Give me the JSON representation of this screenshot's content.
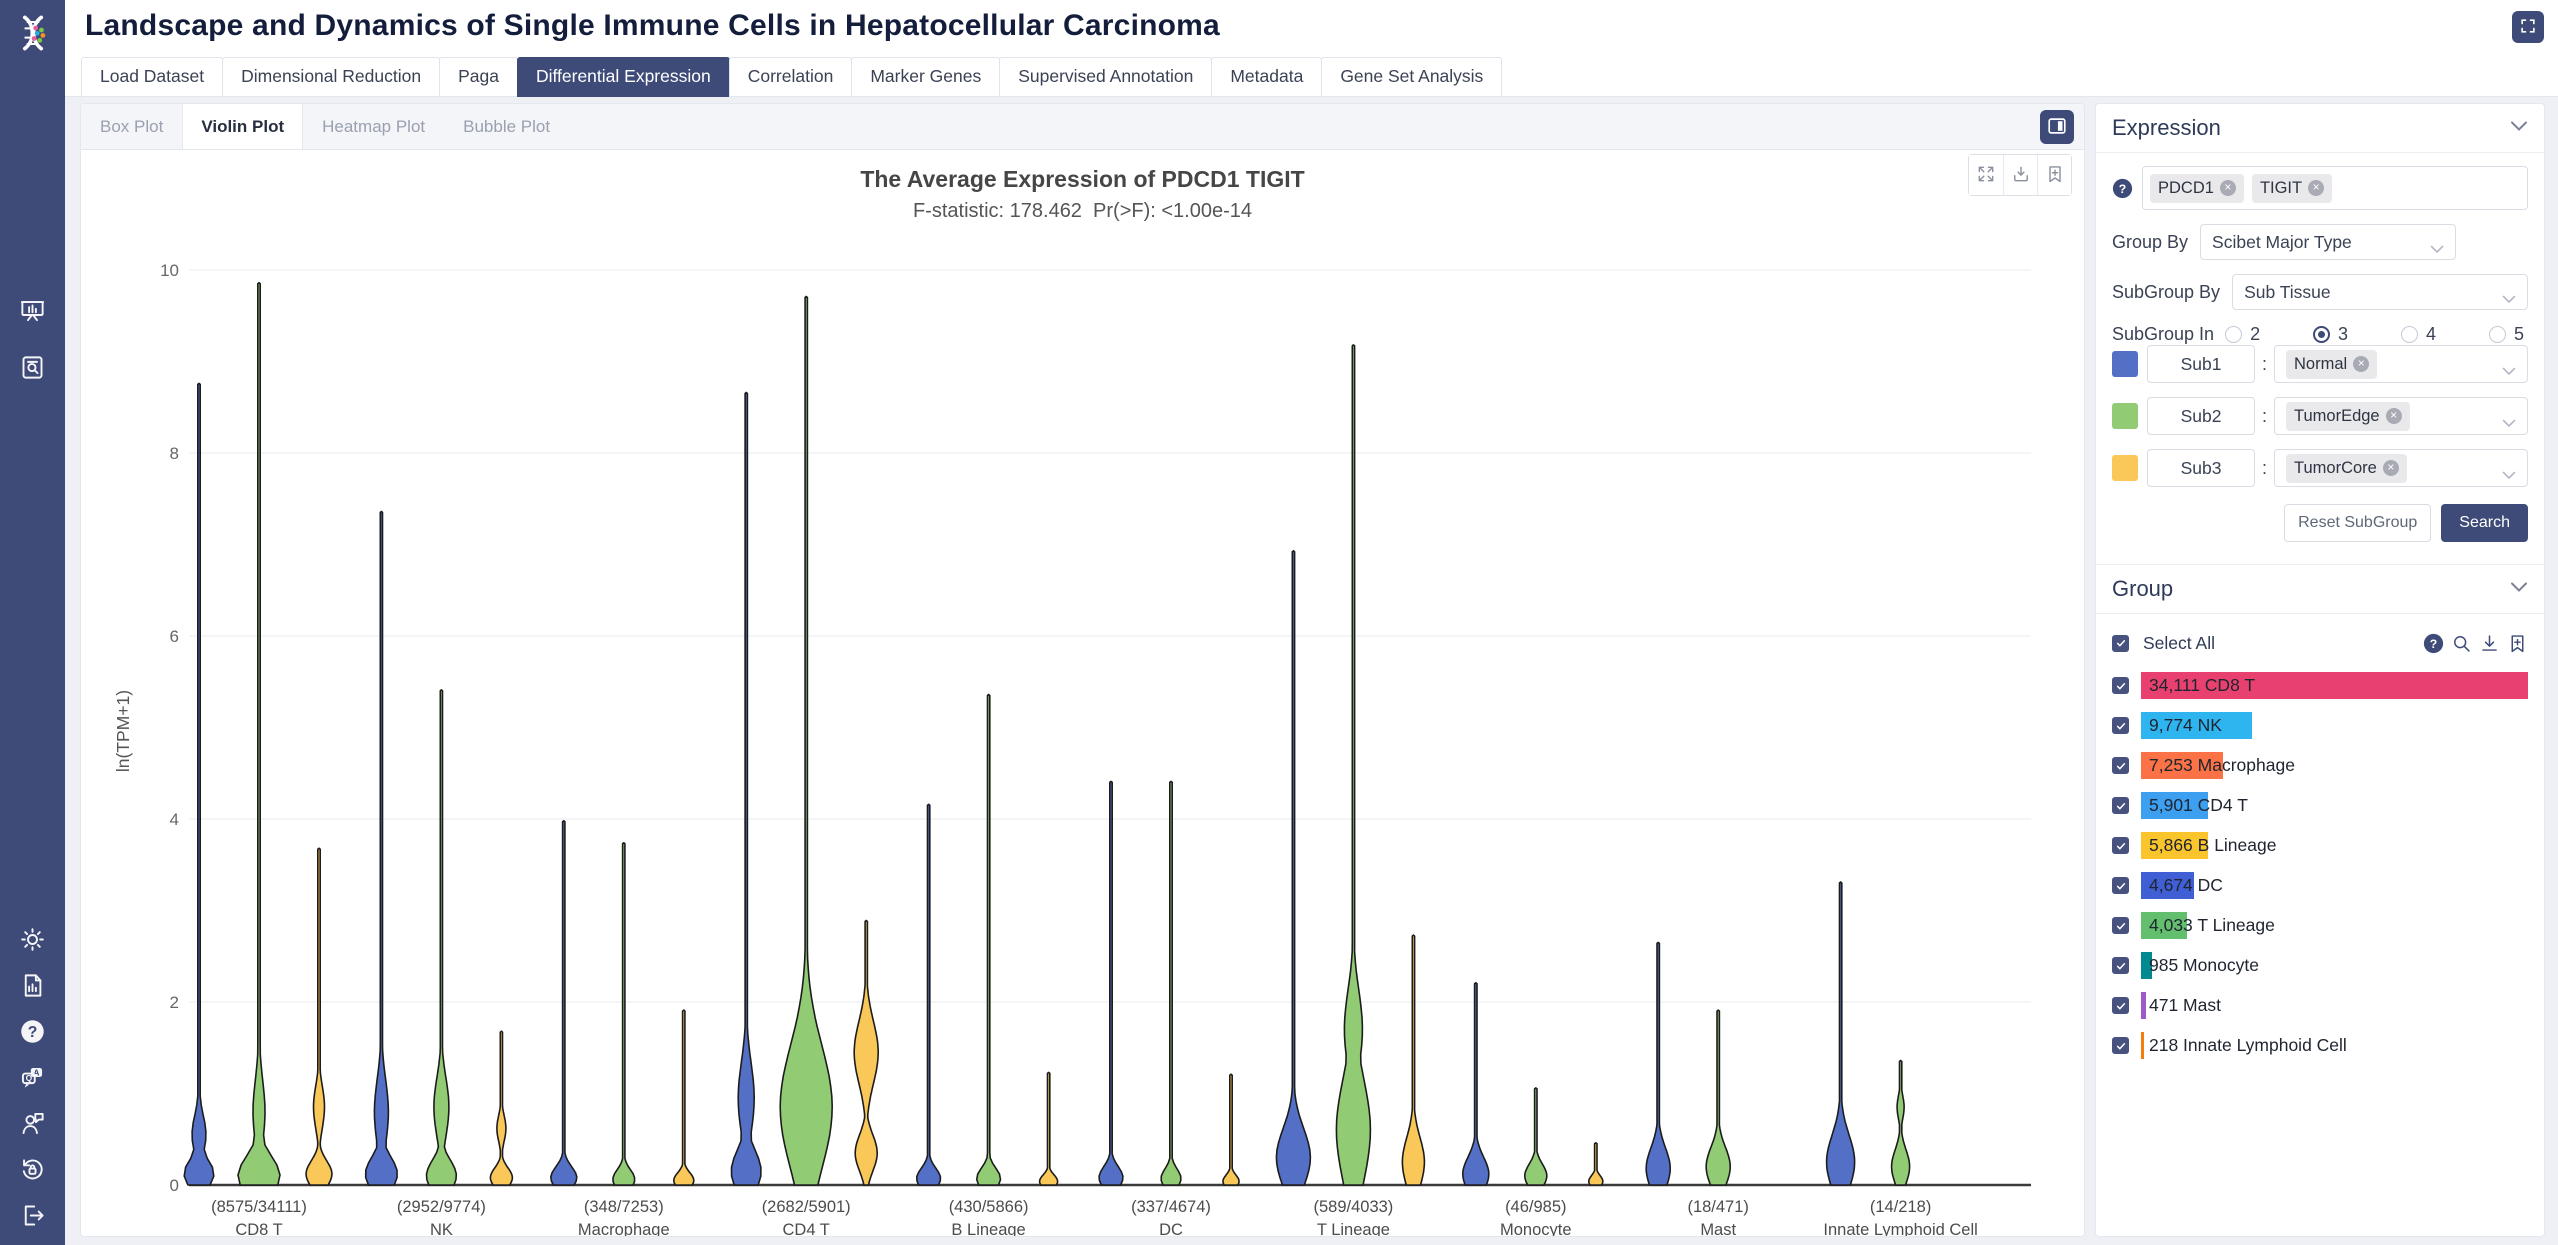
{
  "app": {
    "title": "Landscape and Dynamics of Single Immune Cells in Hepatocellular Carcinoma",
    "accent_color": "#3e4a78"
  },
  "nav_tabs": {
    "items": [
      "Load Dataset",
      "Dimensional Reduction",
      "Paga",
      "Differential Expression",
      "Correlation",
      "Marker Genes",
      "Supervised Annotation",
      "Metadata",
      "Gene Set Analysis"
    ],
    "active_index": 3
  },
  "plot_tabs": {
    "items": [
      "Box Plot",
      "Violin Plot",
      "Heatmap Plot",
      "Bubble Plot"
    ],
    "active_index": 1
  },
  "rail_icons": {
    "top": [
      "presentation-chart",
      "file-search"
    ],
    "bottom": [
      "sun",
      "report",
      "help-light",
      "qa",
      "feedback",
      "reset-lock",
      "logout"
    ]
  },
  "chart_toolbar_icons": [
    "expand",
    "download-tray",
    "bookmark-add"
  ],
  "chart_data": {
    "type": "violin",
    "title": "The Average Expression of PDCD1 TIGIT",
    "subtitle": "F-statistic: 178.462  Pr(>F): <1.00e-14",
    "ylabel": "ln(TPM+1)",
    "ylim": [
      0,
      10
    ],
    "yticks": [
      0,
      2,
      4,
      6,
      8,
      10
    ],
    "grid": true,
    "series": [
      {
        "name": "Sub1 (Normal)",
        "color": "#5470c6"
      },
      {
        "name": "Sub2 (TumorEdge)",
        "color": "#91cc75"
      },
      {
        "name": "Sub3 (TumorCore)",
        "color": "#fac858"
      }
    ],
    "categories": [
      {
        "label": "CD8 T",
        "count_label": "(8575/34111)",
        "violins": [
          {
            "max": 8.75,
            "profile": [
              [
                0.12,
                0.22,
                15
              ],
              [
                0.55,
                0.3,
                7
              ]
            ]
          },
          {
            "max": 9.85,
            "profile": [
              [
                0.1,
                0.3,
                21
              ],
              [
                0.8,
                0.5,
                6
              ]
            ]
          },
          {
            "max": 3.67,
            "profile": [
              [
                0.12,
                0.2,
                13
              ],
              [
                0.85,
                0.32,
                5.5
              ]
            ]
          }
        ]
      },
      {
        "label": "NK",
        "count_label": "(2952/9774)",
        "violins": [
          {
            "max": 7.35,
            "profile": [
              [
                0.12,
                0.26,
                16
              ],
              [
                0.8,
                0.5,
                7
              ]
            ]
          },
          {
            "max": 5.4,
            "profile": [
              [
                0.1,
                0.24,
                15
              ],
              [
                0.85,
                0.45,
                7.5
              ]
            ]
          },
          {
            "max": 1.67,
            "profile": [
              [
                0.08,
                0.15,
                11
              ],
              [
                0.62,
                0.2,
                4.5
              ]
            ]
          }
        ]
      },
      {
        "label": "Macrophage",
        "count_label": "(348/7253)",
        "violins": [
          {
            "max": 3.97,
            "profile": [
              [
                0.08,
                0.17,
                13
              ]
            ]
          },
          {
            "max": 3.73,
            "profile": [
              [
                0.06,
                0.15,
                11
              ]
            ]
          },
          {
            "max": 1.9,
            "profile": [
              [
                0.05,
                0.12,
                10
              ]
            ]
          }
        ]
      },
      {
        "label": "CD4 T",
        "count_label": "(2682/5901)",
        "violins": [
          {
            "max": 8.65,
            "profile": [
              [
                0.15,
                0.32,
                15
              ],
              [
                0.95,
                0.55,
                8
              ]
            ]
          },
          {
            "max": 9.7,
            "profile": [
              [
                0.85,
                0.95,
                26
              ]
            ]
          },
          {
            "max": 2.88,
            "profile": [
              [
                0.35,
                0.28,
                11
              ],
              [
                1.45,
                0.48,
                12
              ]
            ]
          }
        ]
      },
      {
        "label": "B Lineage",
        "count_label": "(430/5866)",
        "violins": [
          {
            "max": 4.15,
            "profile": [
              [
                0.07,
                0.16,
                12
              ]
            ]
          },
          {
            "max": 5.35,
            "profile": [
              [
                0.07,
                0.16,
                12
              ]
            ]
          },
          {
            "max": 1.22,
            "profile": [
              [
                0.04,
                0.1,
                9
              ]
            ]
          }
        ]
      },
      {
        "label": "DC",
        "count_label": "(337/4674)",
        "violins": [
          {
            "max": 4.4,
            "profile": [
              [
                0.08,
                0.17,
                12
              ]
            ]
          },
          {
            "max": 4.4,
            "profile": [
              [
                0.07,
                0.15,
                10
              ]
            ]
          },
          {
            "max": 1.2,
            "profile": [
              [
                0.04,
                0.1,
                8
              ]
            ]
          }
        ]
      },
      {
        "label": "T Lineage",
        "count_label": "(589/4033)",
        "violins": [
          {
            "max": 6.92,
            "profile": [
              [
                0.3,
                0.45,
                17
              ]
            ]
          },
          {
            "max": 9.17,
            "profile": [
              [
                0.6,
                0.8,
                17
              ],
              [
                1.7,
                0.6,
                9
              ]
            ]
          },
          {
            "max": 2.72,
            "profile": [
              [
                0.25,
                0.38,
                11
              ]
            ]
          }
        ]
      },
      {
        "label": "Monocyte",
        "count_label": "(46/985)",
        "violins": [
          {
            "max": 2.2,
            "profile": [
              [
                0.12,
                0.26,
                13
              ]
            ]
          },
          {
            "max": 1.05,
            "profile": [
              [
                0.1,
                0.18,
                11
              ]
            ]
          },
          {
            "max": 0.45,
            "profile": [
              [
                0.04,
                0.09,
                7
              ]
            ]
          }
        ]
      },
      {
        "label": "Mast",
        "count_label": "(18/471)",
        "violins": [
          {
            "max": 2.64,
            "profile": [
              [
                0.18,
                0.32,
                12
              ]
            ]
          },
          {
            "max": 1.9,
            "profile": [
              [
                0.2,
                0.3,
                12
              ]
            ]
          },
          {
            "max": 0,
            "profile": []
          }
        ]
      },
      {
        "label": "Innate Lymphoid Cell",
        "count_label": "(14/218)",
        "violins": [
          {
            "max": 3.3,
            "profile": [
              [
                0.25,
                0.42,
                14
              ]
            ]
          },
          {
            "max": 1.35,
            "profile": [
              [
                0.2,
                0.26,
                9
              ],
              [
                0.85,
                0.18,
                3.5
              ]
            ]
          },
          {
            "max": 0,
            "profile": []
          }
        ]
      }
    ]
  },
  "expression_panel": {
    "title": "Expression",
    "genes": [
      "PDCD1",
      "TIGIT"
    ],
    "group_by_label": "Group By",
    "group_by_value": "Scibet Major Type",
    "subgroup_by_label": "SubGroup By",
    "subgroup_by_value": "Sub Tissue",
    "subgroup_in_label": "SubGroup In",
    "subgroup_in_options": [
      "2",
      "3",
      "4",
      "5"
    ],
    "subgroup_in_selected": "3",
    "subgroups": [
      {
        "name": "Sub1",
        "color": "#5470c6",
        "value": "Normal"
      },
      {
        "name": "Sub2",
        "color": "#91cc75",
        "value": "TumorEdge"
      },
      {
        "name": "Sub3",
        "color": "#fac858",
        "value": "TumorCore"
      }
    ],
    "reset_label": "Reset SubGroup",
    "search_label": "Search"
  },
  "group_panel": {
    "title": "Group",
    "select_all_label": "Select All",
    "action_icons": [
      "help-dark",
      "search",
      "download",
      "bookmark-add"
    ],
    "items": [
      {
        "count": 34111,
        "count_label": "34,111",
        "label": "CD8 T",
        "color": "#e8416f",
        "checked": true
      },
      {
        "count": 9774,
        "count_label": "9,774",
        "label": "NK",
        "color": "#2eb5f0",
        "checked": true
      },
      {
        "count": 7253,
        "count_label": "7,253",
        "label": "Macrophage",
        "color": "#fa7245",
        "checked": true
      },
      {
        "count": 5901,
        "count_label": "5,901",
        "label": "CD4 T",
        "color": "#3d9ff0",
        "checked": true
      },
      {
        "count": 5866,
        "count_label": "5,866",
        "label": "B Lineage",
        "color": "#fac42d",
        "checked": true
      },
      {
        "count": 4674,
        "count_label": "4,674",
        "label": "DC",
        "color": "#415fd5",
        "checked": true
      },
      {
        "count": 4033,
        "count_label": "4,033",
        "label": "T Lineage",
        "color": "#63be6e",
        "checked": true
      },
      {
        "count": 985,
        "count_label": "985",
        "label": "Monocyte",
        "color": "#02898f",
        "checked": true
      },
      {
        "count": 471,
        "count_label": "471",
        "label": "Mast",
        "color": "#a05ac8",
        "checked": true
      },
      {
        "count": 218,
        "count_label": "218",
        "label": "Innate Lymphoid Cell",
        "color": "#f27d0d",
        "checked": true
      }
    ]
  }
}
